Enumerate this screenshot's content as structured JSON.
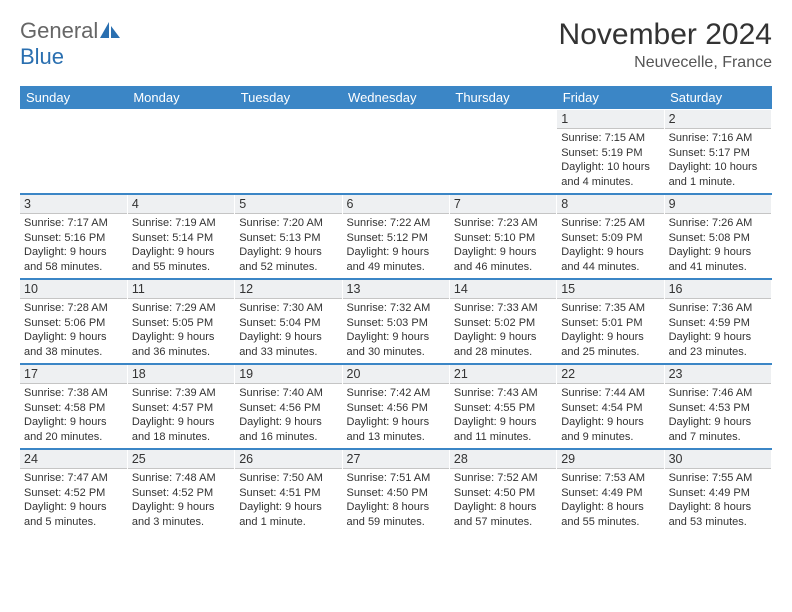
{
  "logo": {
    "general": "General",
    "blue": "Blue"
  },
  "title": {
    "month": "November 2024",
    "location": "Neuvecelle, France"
  },
  "colors": {
    "header_bg": "#3b86c6",
    "header_fg": "#ffffff",
    "daynum_bg": "#eef0f2",
    "sep": "#3b86c6"
  },
  "dayHeaders": [
    "Sunday",
    "Monday",
    "Tuesday",
    "Wednesday",
    "Thursday",
    "Friday",
    "Saturday"
  ],
  "weeks": [
    [
      null,
      null,
      null,
      null,
      null,
      {
        "d": "1",
        "sr": "7:15 AM",
        "ss": "5:19 PM",
        "dl": "10 hours and 4 minutes."
      },
      {
        "d": "2",
        "sr": "7:16 AM",
        "ss": "5:17 PM",
        "dl": "10 hours and 1 minute."
      }
    ],
    [
      {
        "d": "3",
        "sr": "7:17 AM",
        "ss": "5:16 PM",
        "dl": "9 hours and 58 minutes."
      },
      {
        "d": "4",
        "sr": "7:19 AM",
        "ss": "5:14 PM",
        "dl": "9 hours and 55 minutes."
      },
      {
        "d": "5",
        "sr": "7:20 AM",
        "ss": "5:13 PM",
        "dl": "9 hours and 52 minutes."
      },
      {
        "d": "6",
        "sr": "7:22 AM",
        "ss": "5:12 PM",
        "dl": "9 hours and 49 minutes."
      },
      {
        "d": "7",
        "sr": "7:23 AM",
        "ss": "5:10 PM",
        "dl": "9 hours and 46 minutes."
      },
      {
        "d": "8",
        "sr": "7:25 AM",
        "ss": "5:09 PM",
        "dl": "9 hours and 44 minutes."
      },
      {
        "d": "9",
        "sr": "7:26 AM",
        "ss": "5:08 PM",
        "dl": "9 hours and 41 minutes."
      }
    ],
    [
      {
        "d": "10",
        "sr": "7:28 AM",
        "ss": "5:06 PM",
        "dl": "9 hours and 38 minutes."
      },
      {
        "d": "11",
        "sr": "7:29 AM",
        "ss": "5:05 PM",
        "dl": "9 hours and 36 minutes."
      },
      {
        "d": "12",
        "sr": "7:30 AM",
        "ss": "5:04 PM",
        "dl": "9 hours and 33 minutes."
      },
      {
        "d": "13",
        "sr": "7:32 AM",
        "ss": "5:03 PM",
        "dl": "9 hours and 30 minutes."
      },
      {
        "d": "14",
        "sr": "7:33 AM",
        "ss": "5:02 PM",
        "dl": "9 hours and 28 minutes."
      },
      {
        "d": "15",
        "sr": "7:35 AM",
        "ss": "5:01 PM",
        "dl": "9 hours and 25 minutes."
      },
      {
        "d": "16",
        "sr": "7:36 AM",
        "ss": "4:59 PM",
        "dl": "9 hours and 23 minutes."
      }
    ],
    [
      {
        "d": "17",
        "sr": "7:38 AM",
        "ss": "4:58 PM",
        "dl": "9 hours and 20 minutes."
      },
      {
        "d": "18",
        "sr": "7:39 AM",
        "ss": "4:57 PM",
        "dl": "9 hours and 18 minutes."
      },
      {
        "d": "19",
        "sr": "7:40 AM",
        "ss": "4:56 PM",
        "dl": "9 hours and 16 minutes."
      },
      {
        "d": "20",
        "sr": "7:42 AM",
        "ss": "4:56 PM",
        "dl": "9 hours and 13 minutes."
      },
      {
        "d": "21",
        "sr": "7:43 AM",
        "ss": "4:55 PM",
        "dl": "9 hours and 11 minutes."
      },
      {
        "d": "22",
        "sr": "7:44 AM",
        "ss": "4:54 PM",
        "dl": "9 hours and 9 minutes."
      },
      {
        "d": "23",
        "sr": "7:46 AM",
        "ss": "4:53 PM",
        "dl": "9 hours and 7 minutes."
      }
    ],
    [
      {
        "d": "24",
        "sr": "7:47 AM",
        "ss": "4:52 PM",
        "dl": "9 hours and 5 minutes."
      },
      {
        "d": "25",
        "sr": "7:48 AM",
        "ss": "4:52 PM",
        "dl": "9 hours and 3 minutes."
      },
      {
        "d": "26",
        "sr": "7:50 AM",
        "ss": "4:51 PM",
        "dl": "9 hours and 1 minute."
      },
      {
        "d": "27",
        "sr": "7:51 AM",
        "ss": "4:50 PM",
        "dl": "8 hours and 59 minutes."
      },
      {
        "d": "28",
        "sr": "7:52 AM",
        "ss": "4:50 PM",
        "dl": "8 hours and 57 minutes."
      },
      {
        "d": "29",
        "sr": "7:53 AM",
        "ss": "4:49 PM",
        "dl": "8 hours and 55 minutes."
      },
      {
        "d": "30",
        "sr": "7:55 AM",
        "ss": "4:49 PM",
        "dl": "8 hours and 53 minutes."
      }
    ]
  ],
  "labels": {
    "sunrise": "Sunrise:",
    "sunset": "Sunset:",
    "daylight": "Daylight:"
  }
}
